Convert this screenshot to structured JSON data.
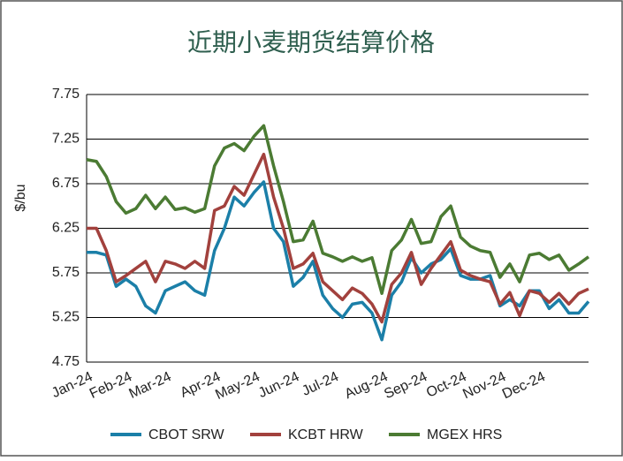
{
  "chart_data": {
    "type": "line",
    "title": "近期小麦期货结算价格",
    "y_label": "$/bu",
    "categories": [
      "Jan-24",
      null,
      null,
      null,
      "Feb-24",
      null,
      null,
      null,
      "Mar-24",
      null,
      null,
      null,
      null,
      "Apr-24",
      null,
      null,
      null,
      "May-24",
      null,
      null,
      null,
      "Jun-24",
      null,
      null,
      null,
      "Jul-24",
      null,
      null,
      null,
      null,
      "Aug-24",
      null,
      null,
      null,
      "Sep-24",
      null,
      null,
      null,
      "Oct-24",
      null,
      null,
      null,
      "Nov-24",
      null,
      null,
      null,
      "Dec-24",
      null,
      null,
      null,
      null,
      null
    ],
    "series": [
      {
        "name": "CBOT SRW",
        "color": "#1b7fa8",
        "values": [
          5.98,
          5.98,
          5.95,
          5.6,
          5.68,
          5.6,
          5.38,
          5.3,
          5.55,
          5.6,
          5.65,
          5.55,
          5.5,
          6.0,
          6.25,
          6.6,
          6.5,
          6.65,
          6.77,
          6.25,
          6.1,
          5.6,
          5.7,
          5.88,
          5.5,
          5.35,
          5.25,
          5.4,
          5.42,
          5.3,
          5.0,
          5.5,
          5.65,
          5.92,
          5.75,
          5.85,
          5.9,
          6.02,
          5.72,
          5.68,
          5.68,
          5.72,
          5.38,
          5.45,
          5.38,
          5.55,
          5.55,
          5.35,
          5.45,
          5.3,
          5.3,
          5.43
        ]
      },
      {
        "name": "KCBT HRW",
        "color": "#a2413d",
        "values": [
          6.25,
          6.25,
          6.0,
          5.65,
          5.72,
          5.8,
          5.88,
          5.65,
          5.88,
          5.85,
          5.8,
          5.88,
          5.8,
          6.45,
          6.5,
          6.72,
          6.62,
          6.85,
          7.08,
          6.6,
          6.25,
          5.8,
          5.85,
          5.97,
          5.65,
          5.55,
          5.45,
          5.58,
          5.52,
          5.4,
          5.2,
          5.62,
          5.75,
          5.98,
          5.62,
          5.8,
          5.95,
          6.1,
          5.78,
          5.72,
          5.68,
          5.65,
          5.4,
          5.53,
          5.27,
          5.55,
          5.52,
          5.42,
          5.52,
          5.4,
          5.52,
          5.57
        ]
      },
      {
        "name": "MGEX HRS",
        "color": "#4b7b33",
        "values": [
          7.02,
          7.0,
          6.83,
          6.55,
          6.42,
          6.47,
          6.62,
          6.47,
          6.6,
          6.46,
          6.48,
          6.43,
          6.47,
          6.95,
          7.15,
          7.2,
          7.12,
          7.28,
          7.4,
          6.95,
          6.55,
          6.1,
          6.12,
          6.33,
          5.97,
          5.93,
          5.88,
          5.93,
          5.88,
          5.92,
          5.52,
          6.0,
          6.12,
          6.35,
          6.08,
          6.1,
          6.38,
          6.5,
          6.15,
          6.05,
          6.0,
          5.98,
          5.7,
          5.85,
          5.65,
          5.95,
          5.97,
          5.9,
          5.95,
          5.78,
          5.85,
          5.93
        ]
      }
    ],
    "ylim": [
      4.75,
      7.75
    ],
    "yticks": [
      4.75,
      5.25,
      5.75,
      6.25,
      6.75,
      7.25,
      7.75
    ],
    "grid": true,
    "legend": "bottom"
  }
}
